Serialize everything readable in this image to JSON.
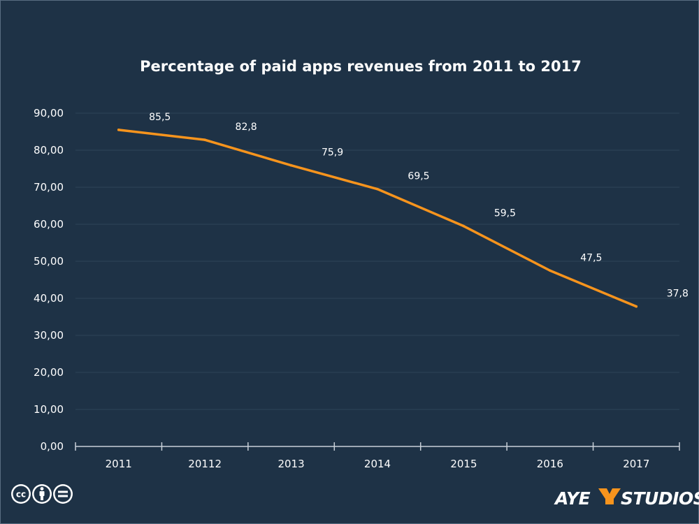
{
  "chart_data": {
    "type": "line",
    "title": "Percentage of paid apps revenues from 2011 to 2017",
    "xlabel": "",
    "ylabel": "",
    "categories": [
      "2011",
      "20112",
      "2013",
      "2014",
      "2015",
      "2016",
      "2017"
    ],
    "series": [
      {
        "values": [
          85.5,
          82.8,
          75.9,
          69.5,
          59.5,
          47.5,
          37.8
        ],
        "data_labels": [
          "85,5",
          "82,8",
          "75,9",
          "69,5",
          "59,5",
          "47,5",
          "37,8"
        ],
        "color": "#f7941d"
      }
    ],
    "ylim": [
      0,
      90
    ],
    "y_ticks": [
      0,
      10,
      20,
      30,
      40,
      50,
      60,
      70,
      80,
      90
    ],
    "y_tick_labels": [
      "0,00",
      "10,00",
      "20,00",
      "30,00",
      "40,00",
      "50,00",
      "60,00",
      "70,00",
      "80,00",
      "90,00"
    ],
    "grid": true,
    "legend": "none"
  },
  "colors": {
    "background": "#1e3246",
    "gridline": "#2f4458",
    "axis": "#c8d0d8",
    "line": "#f7941d",
    "text": "#ffffff"
  },
  "footer": {
    "license_icons": [
      "cc-icon",
      "by-icon",
      "nd-icon"
    ],
    "logo_text": "AYE STUDIOS",
    "logo_name": "ayestudios-logo"
  }
}
